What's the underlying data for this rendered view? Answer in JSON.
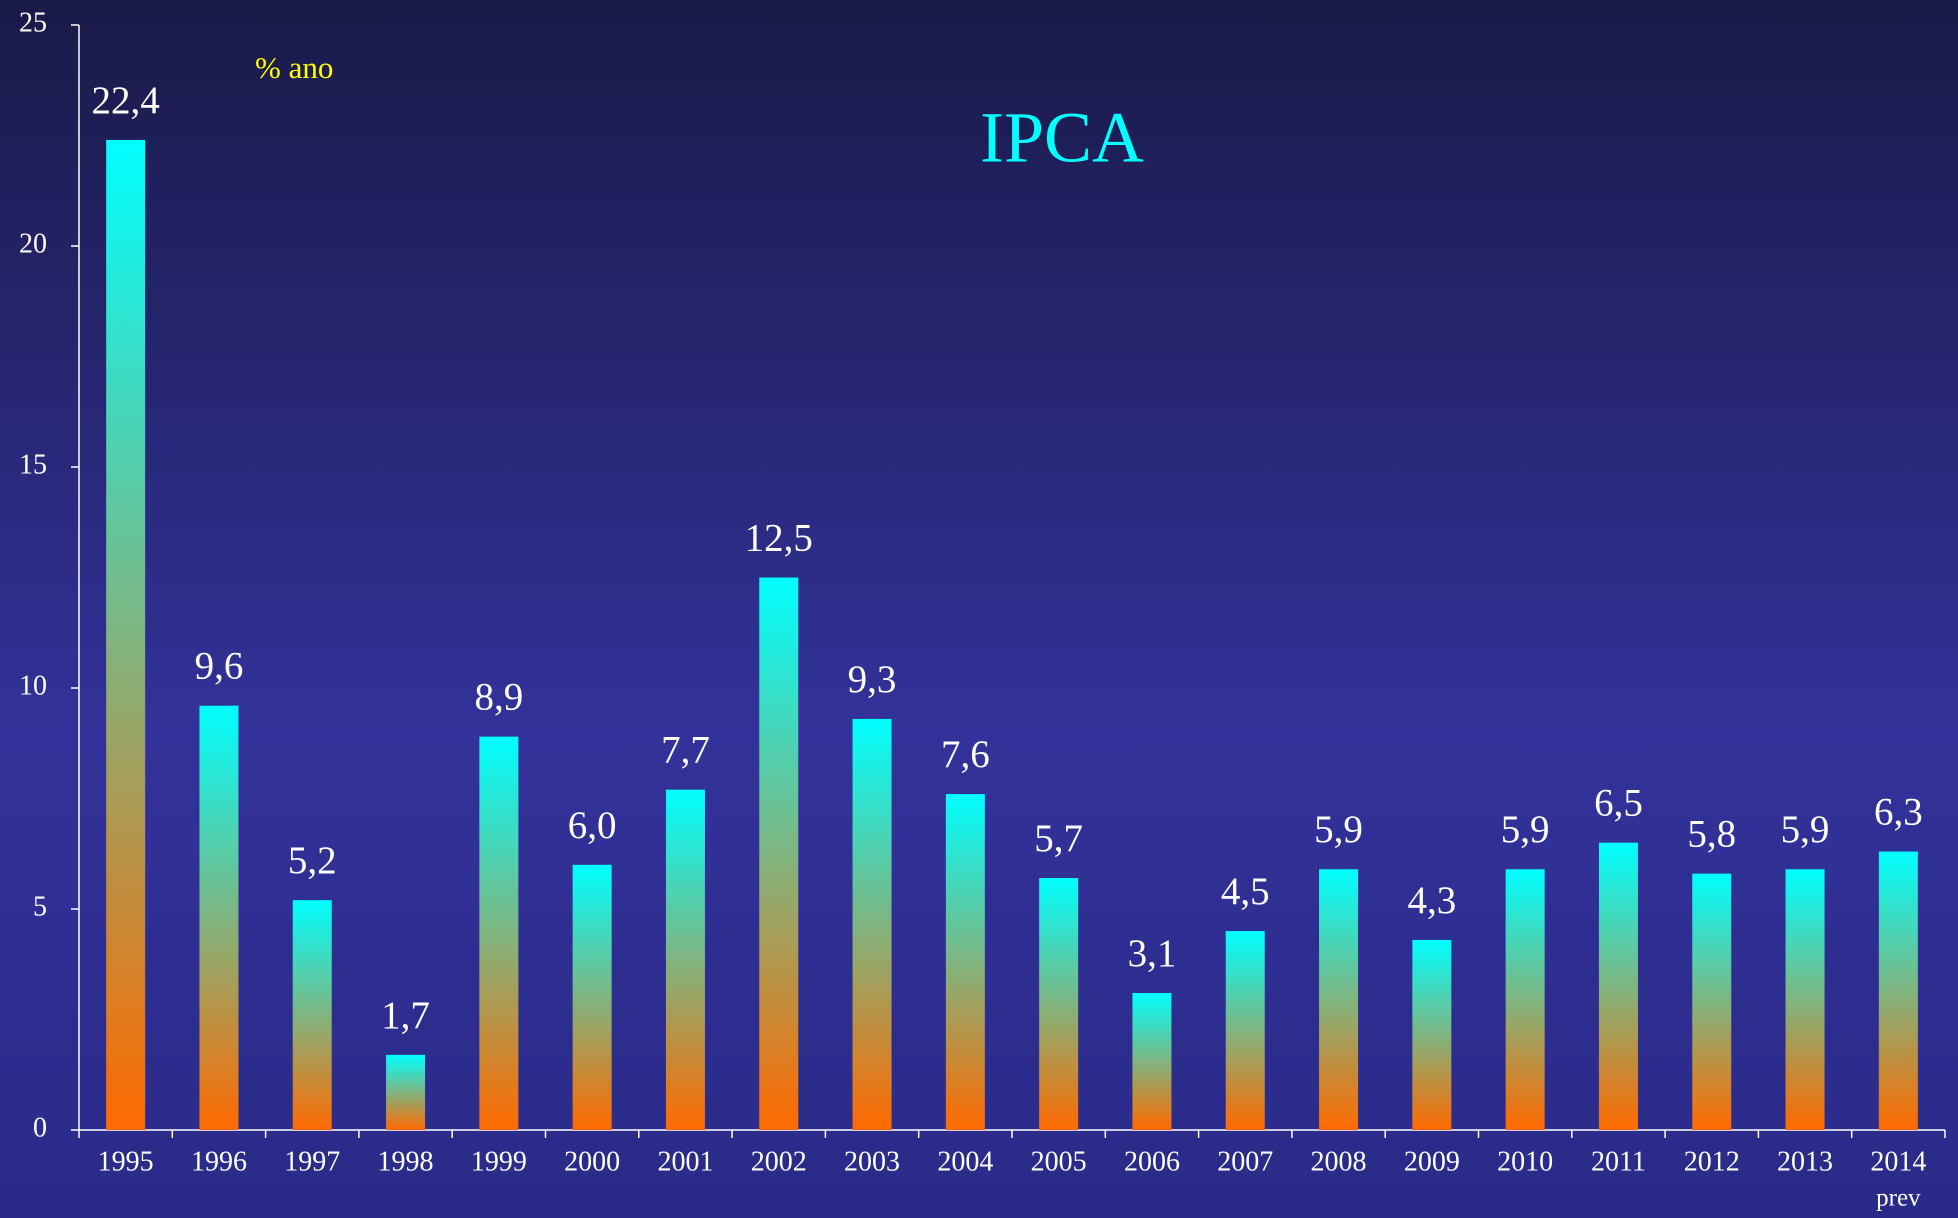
{
  "chart_data": {
    "type": "bar",
    "title": "IPCA",
    "unit_label": "% ano",
    "categories": [
      "1995",
      "1996",
      "1997",
      "1998",
      "1999",
      "2000",
      "2001",
      "2002",
      "2003",
      "2004",
      "2005",
      "2006",
      "2007",
      "2008",
      "2009",
      "2010",
      "2011",
      "2012",
      "2013",
      "2014"
    ],
    "category_note": "prev",
    "values": [
      22.4,
      9.6,
      5.2,
      1.7,
      8.9,
      6.0,
      7.7,
      12.5,
      9.3,
      7.6,
      5.7,
      3.1,
      4.5,
      5.9,
      4.3,
      5.9,
      6.5,
      5.8,
      5.9,
      6.3
    ],
    "value_labels": [
      "22,4",
      "9,6",
      "5,2",
      "1,7",
      "8,9",
      "6,0",
      "7,7",
      "12,5",
      "9,3",
      "7,6",
      "5,7",
      "3,1",
      "4,5",
      "5,9",
      "4,3",
      "5,9",
      "6,5",
      "5,8",
      "5,9",
      "6,3"
    ],
    "color": [
      "#00ffff",
      "#ff6a00"
    ],
    "ylim": [
      0,
      25
    ],
    "yticks": [
      0,
      5,
      10,
      15,
      20,
      25
    ],
    "grid": false
  }
}
